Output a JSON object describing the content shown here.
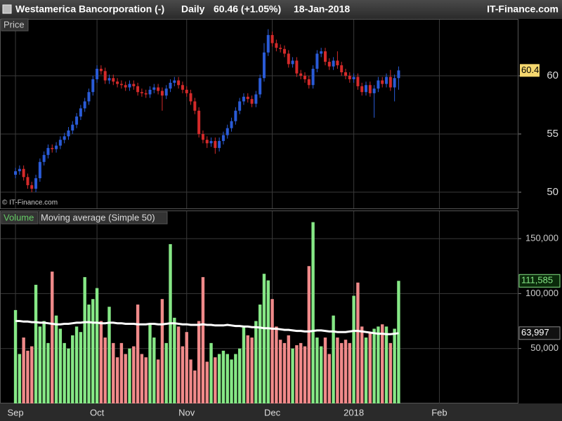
{
  "header": {
    "title": "Westamerica Bancorporation (-)",
    "period": "Daily",
    "last_quote": "60.46 (+1.05%)",
    "date": "18-Jan-2018",
    "source": "IT-Finance.com"
  },
  "chart_data": [
    {
      "type": "candlestick",
      "panel_label": "Price",
      "watermark": "© IT-Finance.com",
      "up_color": "#2a5bd7",
      "down_color": "#d42a2a",
      "open": [
        51.5,
        51.8,
        52.0,
        51.3,
        50.6,
        50.3,
        51.2,
        52.6,
        53.2,
        53.8,
        53.7,
        54.0,
        54.5,
        54.8,
        55.3,
        55.8,
        56.5,
        57.2,
        57.8,
        58.6,
        59.7,
        60.6,
        60.4,
        59.6,
        59.8,
        59.5,
        59.3,
        59.2,
        59.0,
        59.3,
        59.1,
        58.6,
        58.5,
        58.4,
        58.8,
        59.0,
        58.7,
        58.3,
        58.9,
        59.4,
        59.6,
        59.2,
        58.8,
        58.5,
        57.8,
        57.0,
        55.0,
        54.5,
        54.2,
        54.4,
        53.8,
        54.4,
        54.9,
        55.5,
        56.1,
        57.0,
        57.8,
        58.2,
        58.0,
        57.6,
        58.4,
        59.8,
        62.0,
        63.5,
        62.8,
        62.4,
        62.3,
        61.9,
        61.0,
        61.3,
        60.2,
        60.0,
        59.7,
        59.2,
        60.6,
        61.9,
        62.1,
        61.2,
        60.8,
        61.3,
        60.9,
        60.3,
        60.0,
        59.7,
        59.9,
        59.1,
        58.6,
        59.2,
        58.5,
        58.9,
        59.6,
        59.3,
        59.9,
        59.0,
        59.8
      ],
      "high": [
        52.1,
        52.3,
        52.3,
        51.6,
        50.9,
        51.5,
        52.9,
        53.5,
        54.1,
        54.1,
        54.3,
        54.8,
        55.1,
        55.6,
        56.1,
        56.8,
        57.5,
        58.1,
        58.9,
        60.0,
        60.9,
        60.9,
        60.7,
        60.1,
        60.1,
        59.8,
        59.6,
        59.5,
        59.6,
        59.6,
        59.4,
        58.9,
        58.8,
        59.1,
        59.3,
        59.3,
        59.0,
        59.2,
        59.7,
        59.9,
        59.9,
        59.5,
        59.1,
        58.8,
        58.1,
        57.3,
        55.3,
        54.8,
        54.7,
        54.7,
        54.7,
        55.2,
        55.8,
        56.4,
        57.3,
        58.1,
        58.5,
        58.5,
        58.3,
        58.7,
        60.1,
        62.8,
        64.0,
        63.8,
        63.1,
        62.7,
        62.6,
        62.2,
        61.6,
        61.6,
        60.5,
        60.3,
        60.0,
        60.9,
        62.2,
        62.4,
        62.4,
        61.5,
        61.6,
        62.1,
        61.2,
        60.6,
        60.3,
        60.2,
        60.2,
        59.4,
        59.5,
        59.5,
        59.2,
        59.9,
        59.9,
        60.2,
        60.5,
        60.1,
        60.8
      ],
      "low": [
        51.2,
        51.5,
        51.0,
        50.3,
        50.0,
        50.0,
        50.9,
        52.3,
        52.9,
        53.4,
        53.4,
        53.7,
        54.2,
        54.5,
        55.0,
        55.5,
        56.2,
        56.9,
        57.5,
        58.3,
        59.4,
        60.1,
        59.3,
        59.3,
        59.2,
        59.0,
        58.9,
        58.7,
        58.7,
        58.8,
        58.3,
        58.2,
        58.1,
        58.1,
        58.5,
        58.4,
        57.0,
        58.0,
        58.6,
        59.1,
        58.9,
        58.5,
        58.2,
        57.5,
        56.7,
        54.7,
        54.2,
        53.8,
        53.9,
        53.3,
        53.5,
        54.1,
        54.6,
        55.2,
        55.8,
        56.7,
        57.5,
        57.7,
        57.3,
        57.3,
        58.1,
        59.5,
        61.7,
        62.5,
        62.1,
        62.0,
        61.6,
        60.7,
        60.7,
        59.9,
        59.7,
        59.4,
        58.9,
        58.9,
        60.3,
        61.6,
        60.9,
        60.5,
        60.5,
        60.6,
        60.0,
        59.7,
        59.4,
        59.4,
        58.8,
        58.3,
        58.3,
        58.2,
        56.4,
        58.6,
        59.0,
        59.0,
        58.7,
        57.8,
        58.8
      ],
      "close": [
        51.8,
        52.0,
        51.3,
        50.6,
        50.3,
        51.2,
        52.6,
        53.2,
        53.8,
        53.7,
        54.0,
        54.5,
        54.8,
        55.3,
        55.8,
        56.5,
        57.2,
        57.8,
        58.6,
        59.7,
        60.6,
        60.4,
        59.6,
        59.8,
        59.5,
        59.3,
        59.2,
        59.0,
        59.3,
        59.1,
        58.6,
        58.5,
        58.4,
        58.8,
        59.0,
        58.7,
        58.3,
        58.9,
        59.4,
        59.6,
        59.2,
        58.8,
        58.5,
        57.8,
        57.0,
        55.0,
        54.5,
        54.2,
        54.4,
        53.8,
        54.4,
        54.9,
        55.5,
        56.1,
        57.0,
        57.8,
        58.2,
        58.0,
        57.6,
        58.4,
        59.8,
        62.0,
        63.5,
        62.8,
        62.4,
        62.3,
        61.9,
        61.0,
        61.3,
        60.2,
        60.0,
        59.7,
        59.2,
        60.6,
        61.9,
        62.1,
        61.2,
        60.8,
        61.3,
        60.9,
        60.3,
        60.0,
        59.7,
        59.9,
        59.1,
        58.6,
        59.2,
        58.5,
        58.9,
        59.6,
        59.3,
        59.9,
        59.0,
        59.8,
        60.46
      ],
      "ylim": [
        48.61,
        64.88
      ],
      "yticks": [
        50,
        55,
        60
      ],
      "xlim": [
        -3.8,
        123.4
      ],
      "grid": true
    },
    {
      "type": "bar",
      "series": [
        {
          "name": "Volume",
          "up_color": "#86e886",
          "down_color": "#f08a8a",
          "last_value_label": "111,585",
          "values": [
            85000,
            45000,
            60000,
            48000,
            52000,
            108000,
            70000,
            75000,
            55000,
            120000,
            80000,
            68000,
            55000,
            50000,
            62000,
            70000,
            65000,
            115000,
            90000,
            95000,
            105000,
            75000,
            60000,
            88000,
            55000,
            42000,
            55000,
            45000,
            50000,
            52000,
            90000,
            45000,
            42000,
            72000,
            60000,
            40000,
            95000,
            55000,
            145000,
            78000,
            70000,
            52000,
            65000,
            40000,
            30000,
            75000,
            115000,
            38000,
            55000,
            42000,
            45000,
            48000,
            45000,
            40000,
            45000,
            50000,
            70000,
            62000,
            60000,
            75000,
            90000,
            118000,
            112000,
            95000,
            70000,
            58000,
            55000,
            62000,
            50000,
            53000,
            55000,
            52000,
            125000,
            165000,
            60000,
            52000,
            60000,
            45000,
            80000,
            60000,
            55000,
            58000,
            55000,
            98000,
            110000,
            70000,
            60000,
            65000,
            68000,
            70000,
            72000,
            70000,
            55000,
            68000,
            111585
          ]
        },
        {
          "name": "Moving average (Simple 50)",
          "type": "line",
          "color": "#ffffff",
          "last_value_label": "63,997",
          "values": [
            75000,
            75000,
            74500,
            74500,
            74000,
            74000,
            73500,
            73500,
            73000,
            72500,
            72000,
            72000,
            72500,
            72500,
            73000,
            73500,
            73500,
            74000,
            74000,
            73500,
            73500,
            73000,
            73000,
            73500,
            73500,
            73000,
            73000,
            72500,
            72500,
            72500,
            72000,
            72000,
            72000,
            72500,
            72500,
            72000,
            72000,
            72500,
            73000,
            73000,
            72500,
            72000,
            72000,
            71500,
            71500,
            71500,
            72000,
            71500,
            71500,
            71000,
            71000,
            71000,
            71500,
            71000,
            70500,
            70500,
            70000,
            70000,
            69500,
            69500,
            69000,
            68500,
            68500,
            68000,
            68000,
            67500,
            67000,
            67000,
            66500,
            66000,
            66000,
            65500,
            65500,
            66000,
            66500,
            66500,
            66000,
            65500,
            65500,
            65000,
            65000,
            65000,
            65500,
            66000,
            66000,
            65500,
            65000,
            64500,
            64000,
            63500,
            63500,
            63000,
            63000,
            63500,
            63997
          ]
        }
      ],
      "ylim": [
        0,
        175600
      ],
      "yticks": [
        {
          "value": 50000,
          "label": "50,000"
        },
        {
          "value": 100000,
          "label": "100,000"
        },
        {
          "value": 150000,
          "label": "150,000"
        }
      ],
      "xlim": [
        -3.8,
        123.4
      ],
      "xticks": [
        {
          "value": 0,
          "label": "Sep"
        },
        {
          "value": 20,
          "label": "Oct"
        },
        {
          "value": 42,
          "label": "Nov"
        },
        {
          "value": 63,
          "label": "Dec"
        },
        {
          "value": 83,
          "label": "2018"
        },
        {
          "value": 104,
          "label": "Feb"
        }
      ],
      "grid": true
    }
  ]
}
